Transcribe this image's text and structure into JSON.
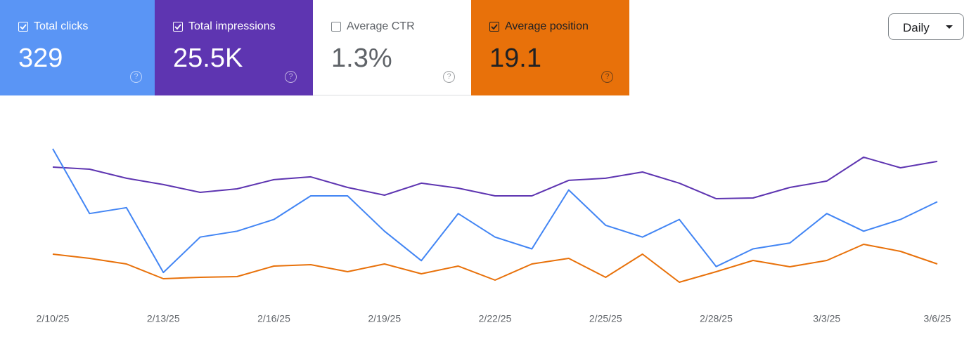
{
  "cards": [
    {
      "label": "Total clicks",
      "value": "329",
      "checked": true,
      "color": "#5a95f5",
      "text_color": "#ffffff"
    },
    {
      "label": "Total impressions",
      "value": "25.5K",
      "checked": true,
      "color": "#5e35b1",
      "text_color": "#ffffff"
    },
    {
      "label": "Average CTR",
      "value": "1.3%",
      "checked": false,
      "color": "#ffffff",
      "text_color": "#5f6368"
    },
    {
      "label": "Average position",
      "value": "19.1",
      "checked": true,
      "color": "#e8710a",
      "text_color": "#202124"
    }
  ],
  "period_selector": "Daily",
  "chart_data": {
    "type": "line",
    "categories": [
      "2/10/25",
      null,
      null,
      "2/13/25",
      null,
      null,
      "2/16/25",
      null,
      null,
      "2/19/25",
      null,
      null,
      "2/22/25",
      null,
      null,
      "2/25/25",
      null,
      null,
      "2/28/25",
      null,
      null,
      "3/3/25",
      null,
      null,
      "3/6/25"
    ],
    "series": [
      {
        "name": "Total impressions",
        "color": "#5e35b1",
        "ylim": [
          0,
          1492
        ],
        "values": [
          1146,
          1128,
          1051,
          997,
          931,
          961,
          1039,
          1063,
          973,
          907,
          1009,
          967,
          901,
          901,
          1033,
          1051,
          1104,
          1009,
          877,
          883,
          973,
          1027,
          1230,
          1140,
          1194
        ]
      },
      {
        "name": "Total clicks",
        "color": "#4285f4",
        "ylim": [
          0,
          29.8
        ],
        "values": [
          26,
          15,
          16,
          5,
          11,
          12,
          14,
          18,
          18,
          12,
          7,
          15,
          11,
          9,
          19,
          13,
          11,
          14,
          6,
          9,
          10,
          15,
          12,
          14,
          17
        ]
      },
      {
        "name": "Average position",
        "color": "#e8710a",
        "ylim": [
          24.2,
          -0.8
        ],
        "values": [
          17.4,
          18.0,
          18.8,
          20.9,
          20.7,
          20.6,
          19.1,
          18.9,
          19.9,
          18.8,
          20.2,
          19.1,
          21.1,
          18.8,
          18.0,
          20.7,
          17.4,
          21.4,
          19.9,
          18.3,
          19.2,
          18.3,
          16.0,
          17.0,
          18.8
        ]
      }
    ]
  }
}
